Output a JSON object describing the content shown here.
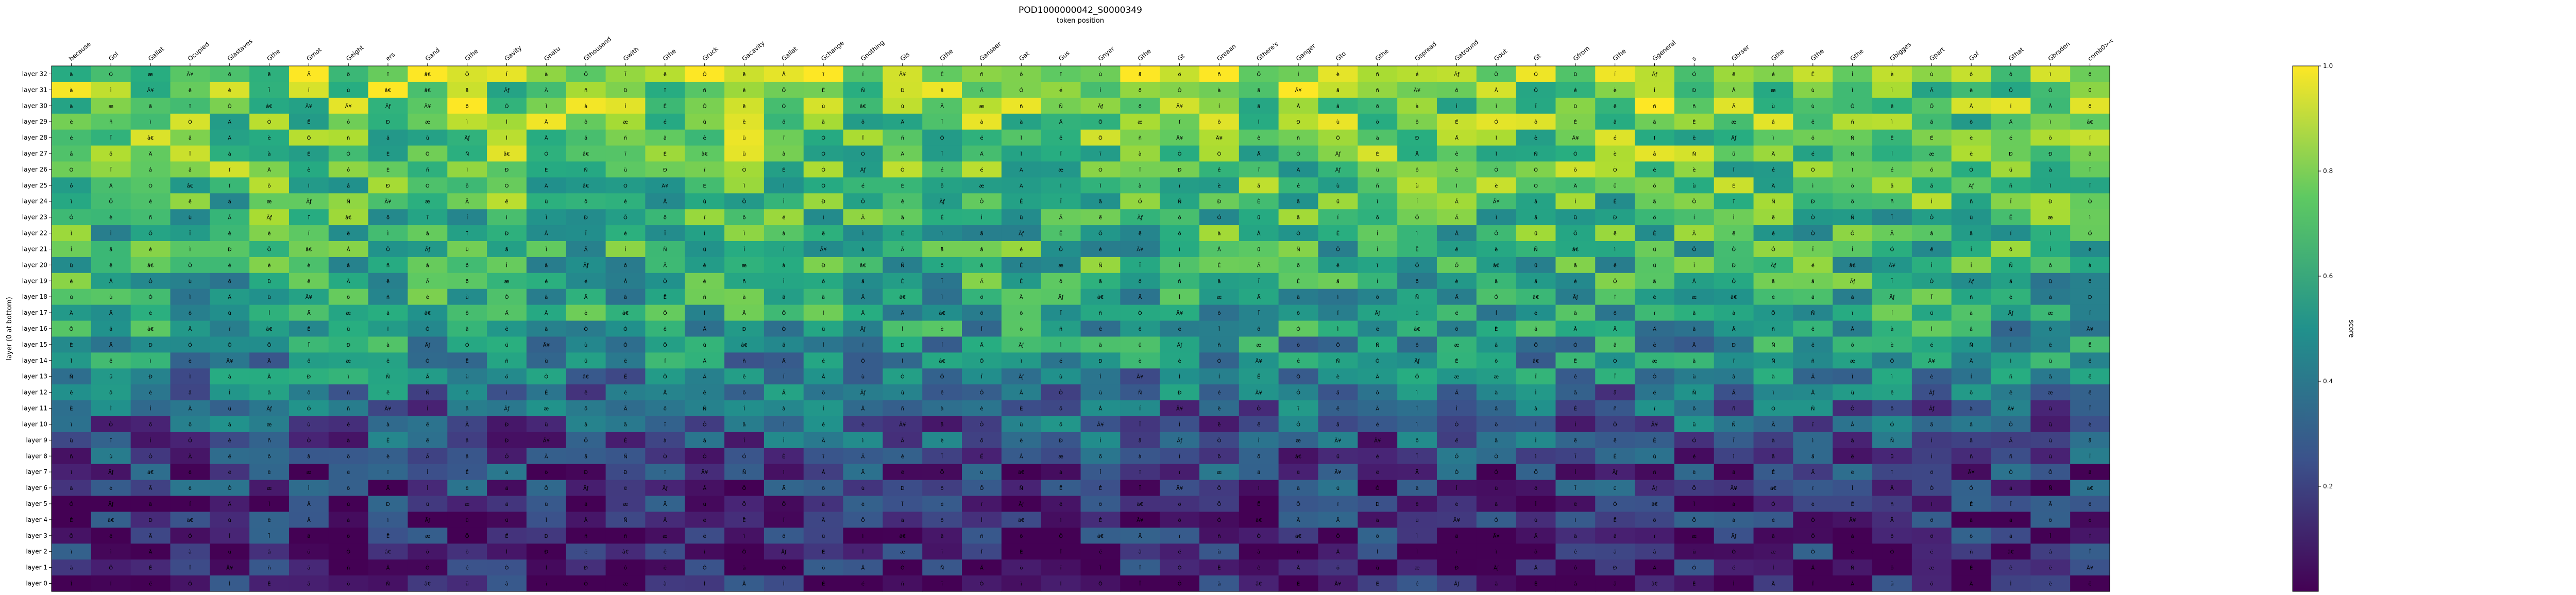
{
  "chart_data": {
    "type": "heatmap",
    "title": "POD1000000042_S0000349",
    "subtitle": "token position",
    "ylabel": "layer (0 at bottom)",
    "colorbar_label": "score",
    "colorbar_range": [
      0.0,
      1.0
    ],
    "colorbar_ticks": [
      0.2,
      0.4,
      0.6,
      0.8,
      1.0
    ],
    "colormap": "viridis",
    "x": [
      "because",
      "Gol",
      "Gallat",
      "Ocupied",
      "Glastaves",
      "Gthe",
      "Gmot",
      "Geight",
      "ers",
      "Gand",
      "Gthe",
      "Gavity",
      "Gnatu",
      "Gthousand",
      "Gwith",
      "Gthe",
      "Gruck",
      "Gacavity",
      "Gallat",
      "Gchange",
      "Gnothing",
      "Gis",
      "Gthe",
      "Gansaer",
      "Gat",
      "Gus",
      "Gnyer",
      "Gthe",
      "Gt",
      "Greaan",
      "Gthere's",
      "Ganger",
      "Gto",
      "Gthe",
      "Gspread",
      "Gatround",
      "Gout",
      "Gt",
      "Gfrom",
      "Gthe",
      "Ggeneral",
      "s",
      "Gbrser",
      "Gthe",
      "Gthe",
      "Gthe",
      "Gbigges",
      "Gpart",
      "Gof",
      "Gthat",
      "Gbrsden",
      "comb0><"
    ],
    "y": [
      "layer 32",
      "layer 31",
      "layer 30",
      "layer 29",
      "layer 28",
      "layer 27",
      "layer 26",
      "layer 25",
      "layer 24",
      "layer 23",
      "layer 22",
      "layer 21",
      "layer 20",
      "layer 19",
      "layer 18",
      "layer 17",
      "layer 16",
      "layer 15",
      "layer 14",
      "layer 13",
      "layer 12",
      "layer 11",
      "layer 10",
      "layer 9",
      "layer 8",
      "layer 7",
      "layer 6",
      "layer 5",
      "layer 4",
      "layer 3",
      "layer 2",
      "layer 1",
      "layer 0"
    ],
    "row_profile": [
      0.84,
      0.8,
      0.78,
      0.76,
      0.75,
      0.74,
      0.72,
      0.7,
      0.68,
      0.66,
      0.64,
      0.63,
      0.62,
      0.6,
      0.58,
      0.56,
      0.54,
      0.5,
      0.47,
      0.44,
      0.38,
      0.34,
      0.3,
      0.26,
      0.22,
      0.19,
      0.17,
      0.14,
      0.12,
      0.1,
      0.09,
      0.08,
      0.07
    ],
    "cell_labels": [
      "ä",
      "â",
      "æ",
      "Ã",
      "ô",
      "ö",
      "à",
      "é",
      "ê",
      "è",
      "ì",
      "ï",
      "ã",
      "õ",
      "ñ",
      "ë",
      "ü",
      "ù",
      "â€",
      "Ã¥",
      "Ãƒ",
      "Ä",
      "Å",
      "Ê",
      "Ë",
      "Ì",
      "Í",
      "Î",
      "Ï",
      "Ð",
      "Ñ",
      "Ò",
      "Ó",
      "Ô",
      "Õ"
    ]
  }
}
